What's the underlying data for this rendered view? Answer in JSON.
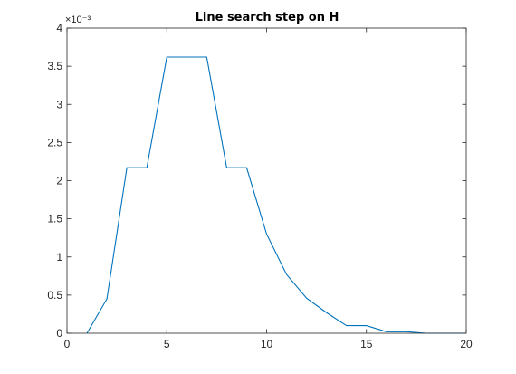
{
  "chart_data": {
    "type": "line",
    "title": "Line search step on H",
    "xlabel": "",
    "ylabel": "",
    "xlim": [
      0,
      20
    ],
    "ylim": [
      0,
      4
    ],
    "y_exponent_label": "×10⁻³",
    "xticks": [
      0,
      5,
      10,
      15,
      20
    ],
    "yticks": [
      0,
      0.5,
      1,
      1.5,
      2,
      2.5,
      3,
      3.5,
      4
    ],
    "xtick_labels": [
      "0",
      "5",
      "10",
      "15",
      "20"
    ],
    "ytick_labels": [
      "0",
      "0.5",
      "1",
      "1.5",
      "2",
      "2.5",
      "3",
      "3.5",
      "4"
    ],
    "grid": false,
    "legend": "none",
    "series": [
      {
        "color": "#0072BD",
        "x": [
          1,
          2,
          3,
          4,
          5,
          6,
          7,
          8,
          9,
          10,
          11,
          12,
          13,
          14,
          15,
          16,
          17,
          18,
          19,
          20
        ],
        "y": [
          0,
          0.45,
          2.17,
          2.17,
          3.62,
          3.62,
          3.62,
          2.17,
          2.17,
          1.3,
          0.77,
          0.46,
          0.27,
          0.1,
          0.1,
          0.02,
          0.02,
          0.0,
          0.0,
          0.0
        ]
      }
    ]
  }
}
